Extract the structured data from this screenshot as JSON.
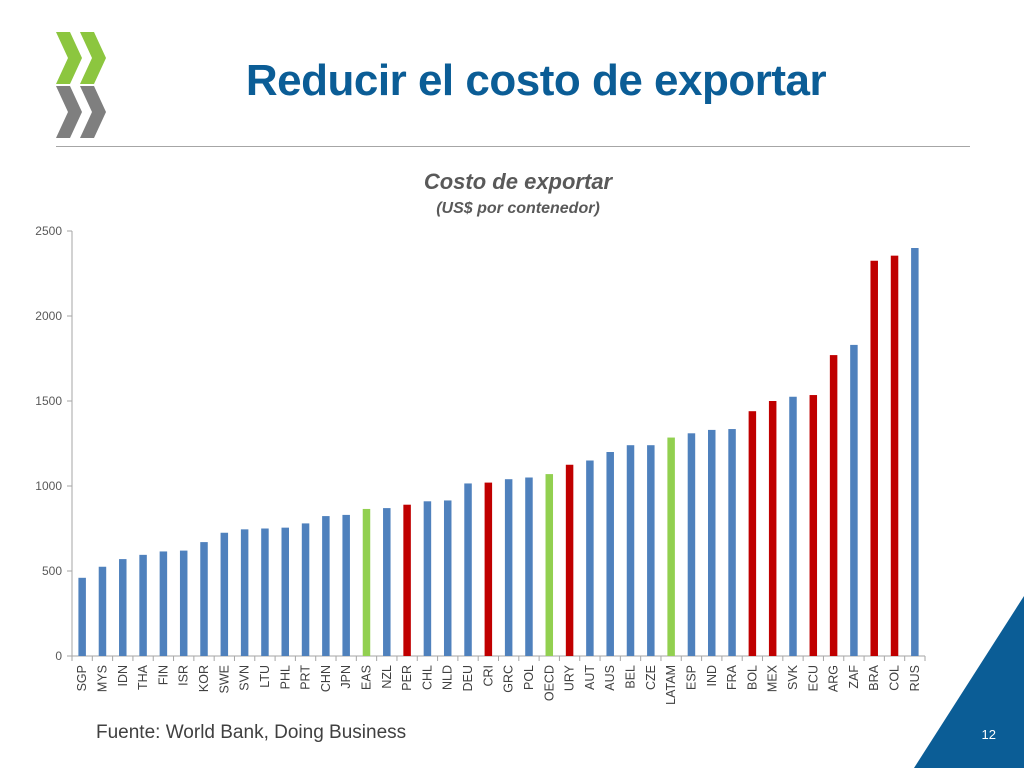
{
  "slide": {
    "title": "Reducir el costo de exportar",
    "source": "Fuente: World Bank, Doing Business",
    "page_number": "12"
  },
  "colors": {
    "title": "#0b5d96",
    "series_default": "#4f81bd",
    "series_latam": "#c00000",
    "series_aggregate": "#92d050",
    "logo_green": "#8cc63f",
    "logo_gray": "#7f7f7f",
    "corner_blue": "#0b5d96"
  },
  "chart_data": {
    "type": "bar",
    "title": "Costo de exportar",
    "subtitle": "(US$ por contenedor)",
    "xlabel": "",
    "ylabel": "",
    "ylim": [
      0,
      2500
    ],
    "yticks": [
      0,
      500,
      1000,
      1500,
      2000,
      2500
    ],
    "grid": false,
    "categories": [
      "SGP",
      "MYS",
      "IDN",
      "THA",
      "FIN",
      "ISR",
      "KOR",
      "SWE",
      "SVN",
      "LTU",
      "PHL",
      "PRT",
      "CHN",
      "JPN",
      "EAS",
      "NZL",
      "PER",
      "CHL",
      "NLD",
      "DEU",
      "CRI",
      "GRC",
      "POL",
      "OECD",
      "URY",
      "AUT",
      "AUS",
      "BEL",
      "CZE",
      "LATAM",
      "ESP",
      "IND",
      "FRA",
      "BOL",
      "MEX",
      "SVK",
      "ECU",
      "ARG",
      "ZAF",
      "BRA",
      "COL",
      "RUS"
    ],
    "values": [
      460,
      525,
      570,
      595,
      615,
      620,
      670,
      725,
      745,
      750,
      755,
      780,
      823,
      830,
      865,
      870,
      890,
      910,
      915,
      1015,
      1020,
      1040,
      1050,
      1070,
      1125,
      1150,
      1200,
      1240,
      1240,
      1285,
      1310,
      1330,
      1335,
      1440,
      1500,
      1525,
      1535,
      1770,
      1830,
      2325,
      2355,
      2400
    ],
    "groups": [
      "default",
      "default",
      "default",
      "default",
      "default",
      "default",
      "default",
      "default",
      "default",
      "default",
      "default",
      "default",
      "default",
      "default",
      "aggregate",
      "default",
      "latam",
      "default",
      "default",
      "default",
      "latam",
      "default",
      "default",
      "aggregate",
      "latam",
      "default",
      "default",
      "default",
      "default",
      "aggregate",
      "default",
      "default",
      "default",
      "latam",
      "latam",
      "default",
      "latam",
      "latam",
      "default",
      "latam",
      "latam",
      "default"
    ]
  }
}
